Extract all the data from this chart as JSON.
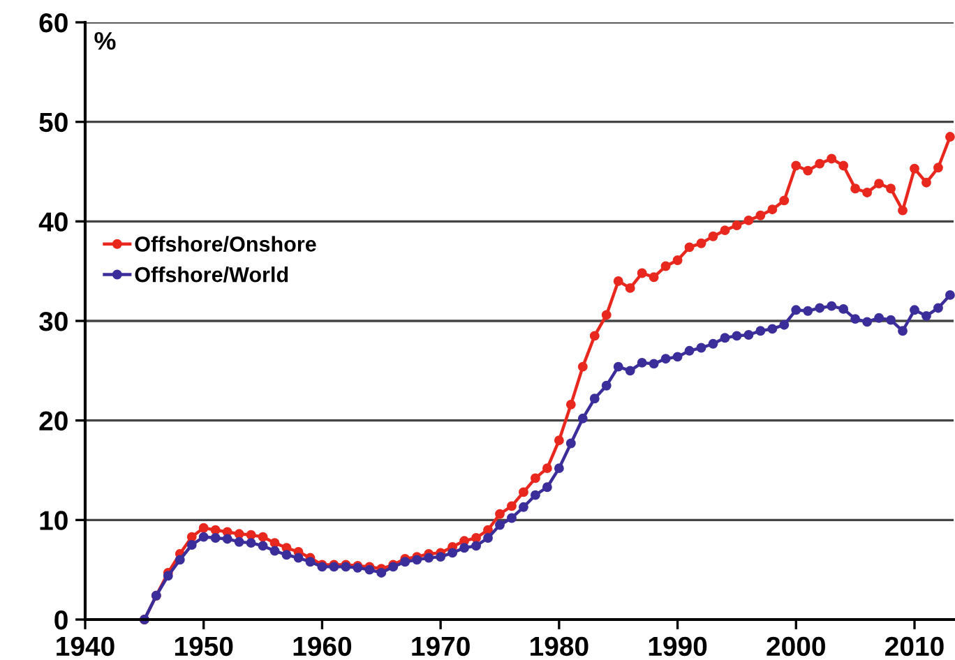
{
  "chart_data": {
    "type": "line",
    "ylabel": "%",
    "x": [
      1945,
      1946,
      1947,
      1948,
      1949,
      1950,
      1951,
      1952,
      1953,
      1954,
      1955,
      1956,
      1957,
      1958,
      1959,
      1960,
      1961,
      1962,
      1963,
      1964,
      1965,
      1966,
      1967,
      1968,
      1969,
      1970,
      1971,
      1972,
      1973,
      1974,
      1975,
      1976,
      1977,
      1978,
      1979,
      1980,
      1981,
      1982,
      1983,
      1984,
      1985,
      1986,
      1987,
      1988,
      1989,
      1990,
      1991,
      1992,
      1993,
      1994,
      1995,
      1996,
      1997,
      1998,
      1999,
      2000,
      2001,
      2002,
      2003,
      2004,
      2005,
      2006,
      2007,
      2008,
      2009,
      2010,
      2011,
      2012,
      2013
    ],
    "series": [
      {
        "name": "Offshore/Onshore",
        "color": "#e8281e",
        "values": [
          0,
          2.4,
          4.7,
          6.6,
          8.3,
          9.2,
          9.0,
          8.8,
          8.6,
          8.5,
          8.3,
          7.7,
          7.2,
          6.8,
          6.2,
          5.5,
          5.5,
          5.5,
          5.4,
          5.3,
          5.1,
          5.5,
          6.1,
          6.3,
          6.6,
          6.7,
          7.3,
          7.9,
          8.2,
          9.0,
          10.6,
          11.4,
          12.8,
          14.2,
          15.2,
          18.0,
          21.6,
          25.4,
          28.5,
          30.6,
          34.0,
          33.3,
          34.8,
          34.4,
          35.5,
          36.1,
          37.4,
          37.8,
          38.5,
          39.1,
          39.6,
          40.1,
          40.6,
          41.2,
          42.1,
          45.6,
          45.1,
          45.8,
          46.3,
          45.6,
          43.3,
          42.9,
          43.8,
          43.3,
          41.1,
          45.3,
          43.9,
          45.4,
          48.5
        ]
      },
      {
        "name": "Offshore/World",
        "color": "#3b2e9a",
        "values": [
          0,
          2.4,
          4.4,
          6.0,
          7.5,
          8.3,
          8.2,
          8.1,
          7.8,
          7.7,
          7.4,
          6.9,
          6.5,
          6.2,
          5.8,
          5.3,
          5.3,
          5.3,
          5.2,
          5.0,
          4.7,
          5.3,
          5.8,
          6.0,
          6.2,
          6.3,
          6.7,
          7.2,
          7.4,
          8.2,
          9.5,
          10.2,
          11.3,
          12.5,
          13.3,
          15.2,
          17.7,
          20.2,
          22.2,
          23.5,
          25.4,
          25.0,
          25.8,
          25.7,
          26.2,
          26.4,
          27.0,
          27.3,
          27.7,
          28.3,
          28.5,
          28.6,
          29.0,
          29.2,
          29.6,
          31.1,
          31.0,
          31.3,
          31.5,
          31.2,
          30.2,
          29.9,
          30.3,
          30.1,
          29.0,
          31.1,
          30.5,
          31.3,
          32.6
        ]
      }
    ],
    "xlim": [
      1940,
      2013.3
    ],
    "xticks": [
      1940,
      1950,
      1960,
      1970,
      1980,
      1990,
      2000,
      2010
    ],
    "ylim": [
      0,
      60
    ],
    "yticks": [
      0,
      10,
      20,
      30,
      40,
      50,
      60
    ],
    "grid": "y",
    "legend": "left",
    "marker": "circle",
    "line_style": "solid"
  }
}
